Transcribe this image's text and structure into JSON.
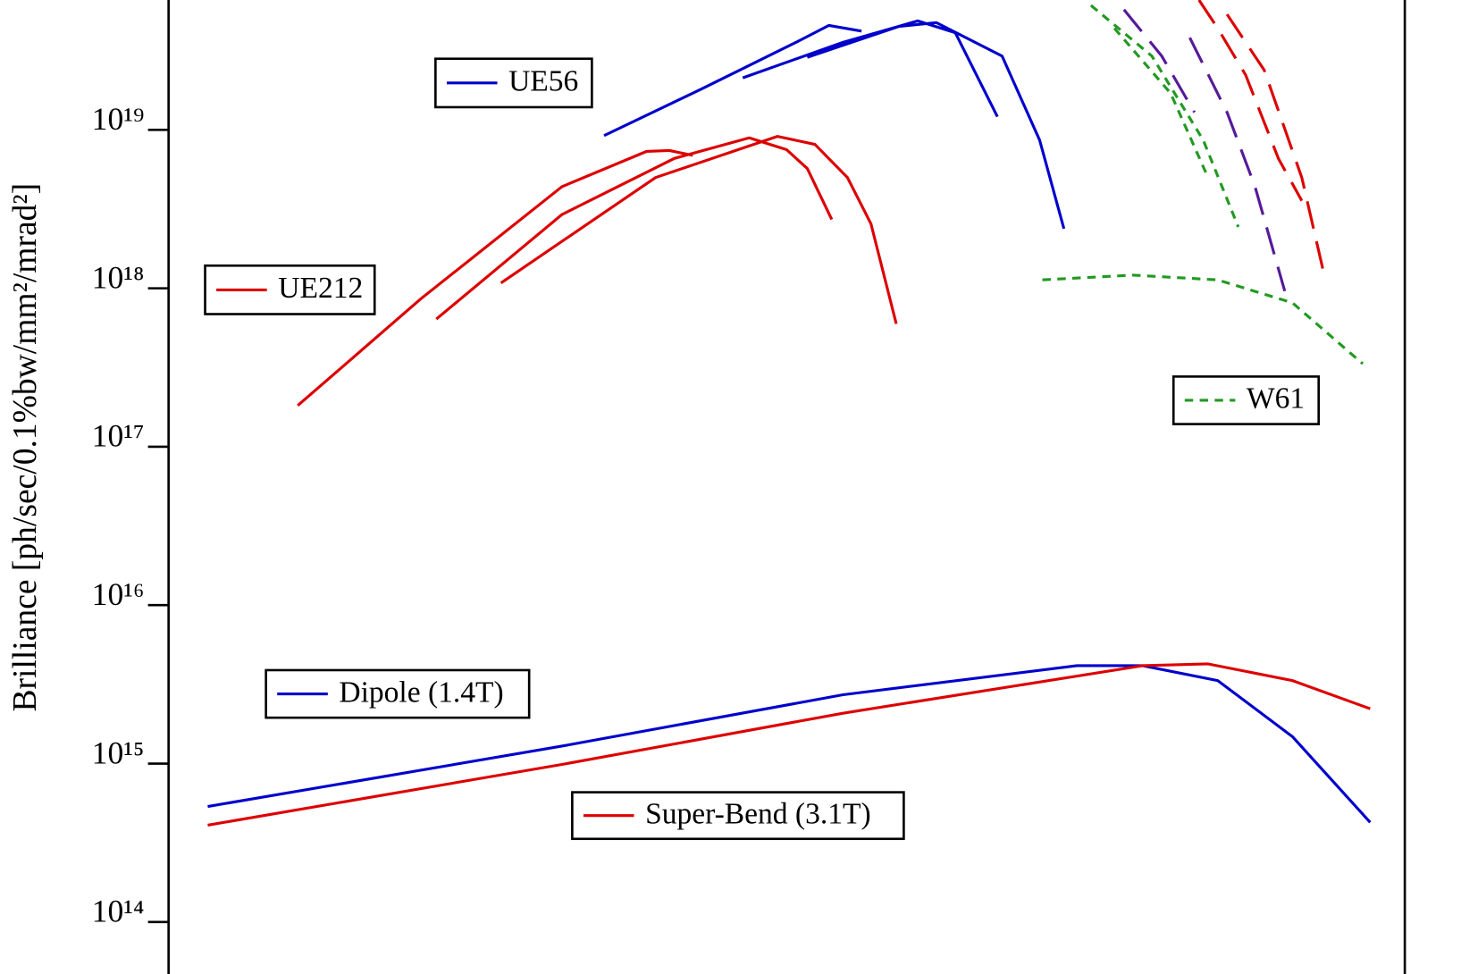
{
  "chart_data": {
    "type": "line",
    "ylabel": "Brilliance [ph/sec/0.1%bw/mm²/mrad²]",
    "xscale": "log",
    "yscale": "log",
    "xlim": [
      1,
      100000
    ],
    "ylim": [
      47000000000000.0,
      6.6e+19
    ],
    "yticks": [
      {
        "value": 100000000000000.0,
        "label": "10¹⁴"
      },
      {
        "value": 1000000000000000.0,
        "label": "10¹⁵"
      },
      {
        "value": 1e+16,
        "label": "10¹⁶"
      },
      {
        "value": 1e+17,
        "label": "10¹⁷"
      },
      {
        "value": 1e+18,
        "label": "10¹⁸"
      },
      {
        "value": 1e+19,
        "label": "10¹⁹"
      }
    ],
    "series": [
      {
        "name": "UE56",
        "color": "#0000cc",
        "dash": "solid",
        "x": [
          57.7,
          144,
          345,
          468,
          635,
          null,
          210,
          534,
          1072,
          1520,
          2250,
          null,
          383,
          901,
          1276,
          2350,
          3334,
          4180
        ],
        "values": [
          9.2e+18,
          1.82e+19,
          3.57e+19,
          4.56e+19,
          4.2e+19,
          null,
          2.13e+19,
          3.57e+19,
          4.87e+19,
          4.1e+19,
          1.21e+19,
          null,
          2.87e+19,
          4.5e+19,
          4.75e+19,
          2.92e+19,
          8.6e+18,
          2.38e+18
        ]
      },
      {
        "name": "UE212",
        "color": "#dd0000",
        "dash": "solid",
        "x": [
          3.33,
          10.5,
          39,
          85.6,
          106,
          132,
          null,
          12.1,
          39,
          111,
          223,
          316,
          383,
          481,
          null,
          22.1,
          93.3,
          290,
          411,
          557,
          693,
          877
        ],
        "values": [
          1.82e+17,
          8.6e+17,
          4.38e+18,
          7.3e+18,
          7.4e+18,
          6.9e+18,
          null,
          6.4e+17,
          2.92e+18,
          6.6e+18,
          8.9e+18,
          7.5e+18,
          5.7e+18,
          2.72e+18,
          null,
          1.08e+18,
          5e+18,
          9.1e+18,
          8.1e+18,
          5e+18,
          2.55e+18,
          5.97e+17
        ]
      },
      {
        "name": "Dipole (1.4T)",
        "color": "#0000cc",
        "dash": "solid",
        "x": [
          1.44,
          39,
          534,
          4720,
          8700,
          17500,
          35100,
          72400
        ],
        "values": [
          536000000000000.0,
          1290000000000000.0,
          2720000000000000.0,
          4150000000000000.0,
          4150000000000000.0,
          3340000000000000.0,
          1480000000000000.0,
          426000000000000.0
        ]
      },
      {
        "name": "Super-Bend (3.1T)",
        "color": "#dd0000",
        "dash": "solid",
        "x": [
          1.44,
          39,
          534,
          8700,
          16000,
          35100,
          72400
        ],
        "values": [
          409000000000000.0,
          987000000000000.0,
          2080000000000000.0,
          4150000000000000.0,
          4260000000000000.0,
          3340000000000000.0,
          2220000000000000.0
        ]
      },
      {
        "name": "W61",
        "color": "#229922",
        "dash": "dashed",
        "x": [
          3420,
          7980,
          17500,
          35100,
          67600,
          null,
          5380,
          9490,
          15300,
          21200,
          null,
          6690,
          11300,
          16000
        ],
        "values": [
          1.13e+18,
          1.21e+18,
          1.13e+18,
          8.1e+17,
          3.34e+17,
          null,
          6.1e+19,
          2.92e+19,
          8.6e+18,
          2.44e+18,
          null,
          4.38e+19,
          1.7e+19,
          5e+18
        ]
      },
      {
        "color": "#551a99",
        "dash": "longdash",
        "x": [
          7310,
          10400,
          14100,
          null,
          13500,
          19100,
          24800,
          32700
        ],
        "values": [
          5.74e+19,
          2.92e+19,
          1.29e+19,
          null,
          3.82e+19,
          1.29e+19,
          4.38e+18,
          9.6e+17
        ]
      },
      {
        "color": "#dd0000",
        "dash": "longdash",
        "x": [
          14700,
          17500,
          22700,
          30800,
          38300,
          null,
          19100,
          27000,
          38300,
          46800
        ],
        "values": [
          6.6e+19,
          4.38e+19,
          2.22e+19,
          6.6e+18,
          3.57e+18,
          null,
          5.36e+19,
          2.38e+19,
          5e+18,
          1.29e+18
        ]
      }
    ]
  }
}
